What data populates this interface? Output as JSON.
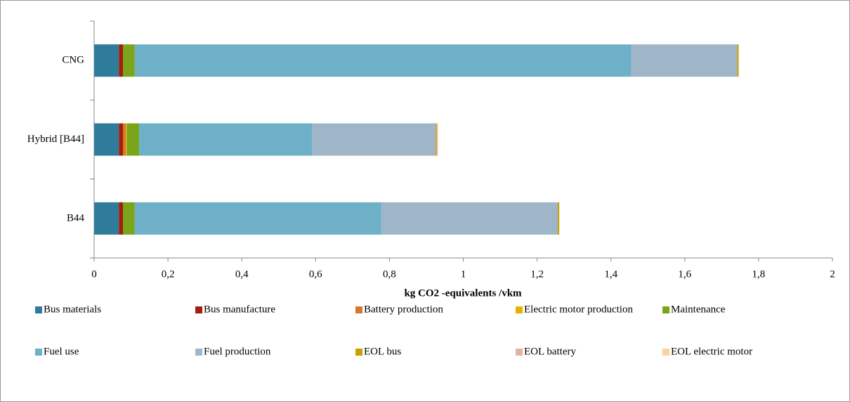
{
  "chart_data": {
    "type": "stacked_barh",
    "xlabel": "kg CO2 -equivalents /vkm",
    "categories": [
      "B44",
      "Hybrid [B44]",
      "CNG"
    ],
    "series": [
      {
        "name": "Bus materials",
        "color": "#2e7b9a",
        "values": [
          0.067,
          0.067,
          0.067
        ]
      },
      {
        "name": "Bus manufacture",
        "color": "#a31d10",
        "values": [
          0.011,
          0.011,
          0.011
        ]
      },
      {
        "name": "Battery production",
        "color": "#d9782b",
        "values": [
          0,
          0.008,
          0
        ]
      },
      {
        "name": "Electric motor production",
        "color": "#e8b000",
        "values": [
          0,
          0.002,
          0
        ]
      },
      {
        "name": "Maintenance",
        "color": "#7aa51a",
        "values": [
          0.032,
          0.034,
          0.032
        ]
      },
      {
        "name": "Fuel use",
        "color": "#6db0c8",
        "values": [
          0.668,
          0.468,
          1.345
        ]
      },
      {
        "name": "Fuel production",
        "color": "#9fb6c9",
        "values": [
          0.478,
          0.335,
          0.287
        ]
      },
      {
        "name": "EOL bus",
        "color": "#c8a000",
        "values": [
          0.004,
          0.003,
          0.004
        ]
      },
      {
        "name": "EOL battery",
        "color": "#e8b0a0",
        "values": [
          0,
          0.003,
          0
        ]
      },
      {
        "name": "EOL electric motor",
        "color": "#f9d59b",
        "values": [
          0,
          0,
          0
        ]
      }
    ],
    "xlim": [
      0,
      2
    ],
    "xticks": [
      0,
      {
        "value": 0.2,
        "label": "0,2"
      },
      {
        "value": 0.4,
        "label": "0,4"
      },
      {
        "value": 0.6,
        "label": "0,6"
      },
      {
        "value": 0.8,
        "label": "0,8"
      },
      1,
      {
        "value": 1.2,
        "label": "1,2"
      },
      {
        "value": 1.4,
        "label": "1,4"
      },
      {
        "value": 1.6,
        "label": "1,6"
      },
      {
        "value": 1.8,
        "label": "1,8"
      },
      2
    ],
    "grid": false,
    "legend": "bottom"
  }
}
